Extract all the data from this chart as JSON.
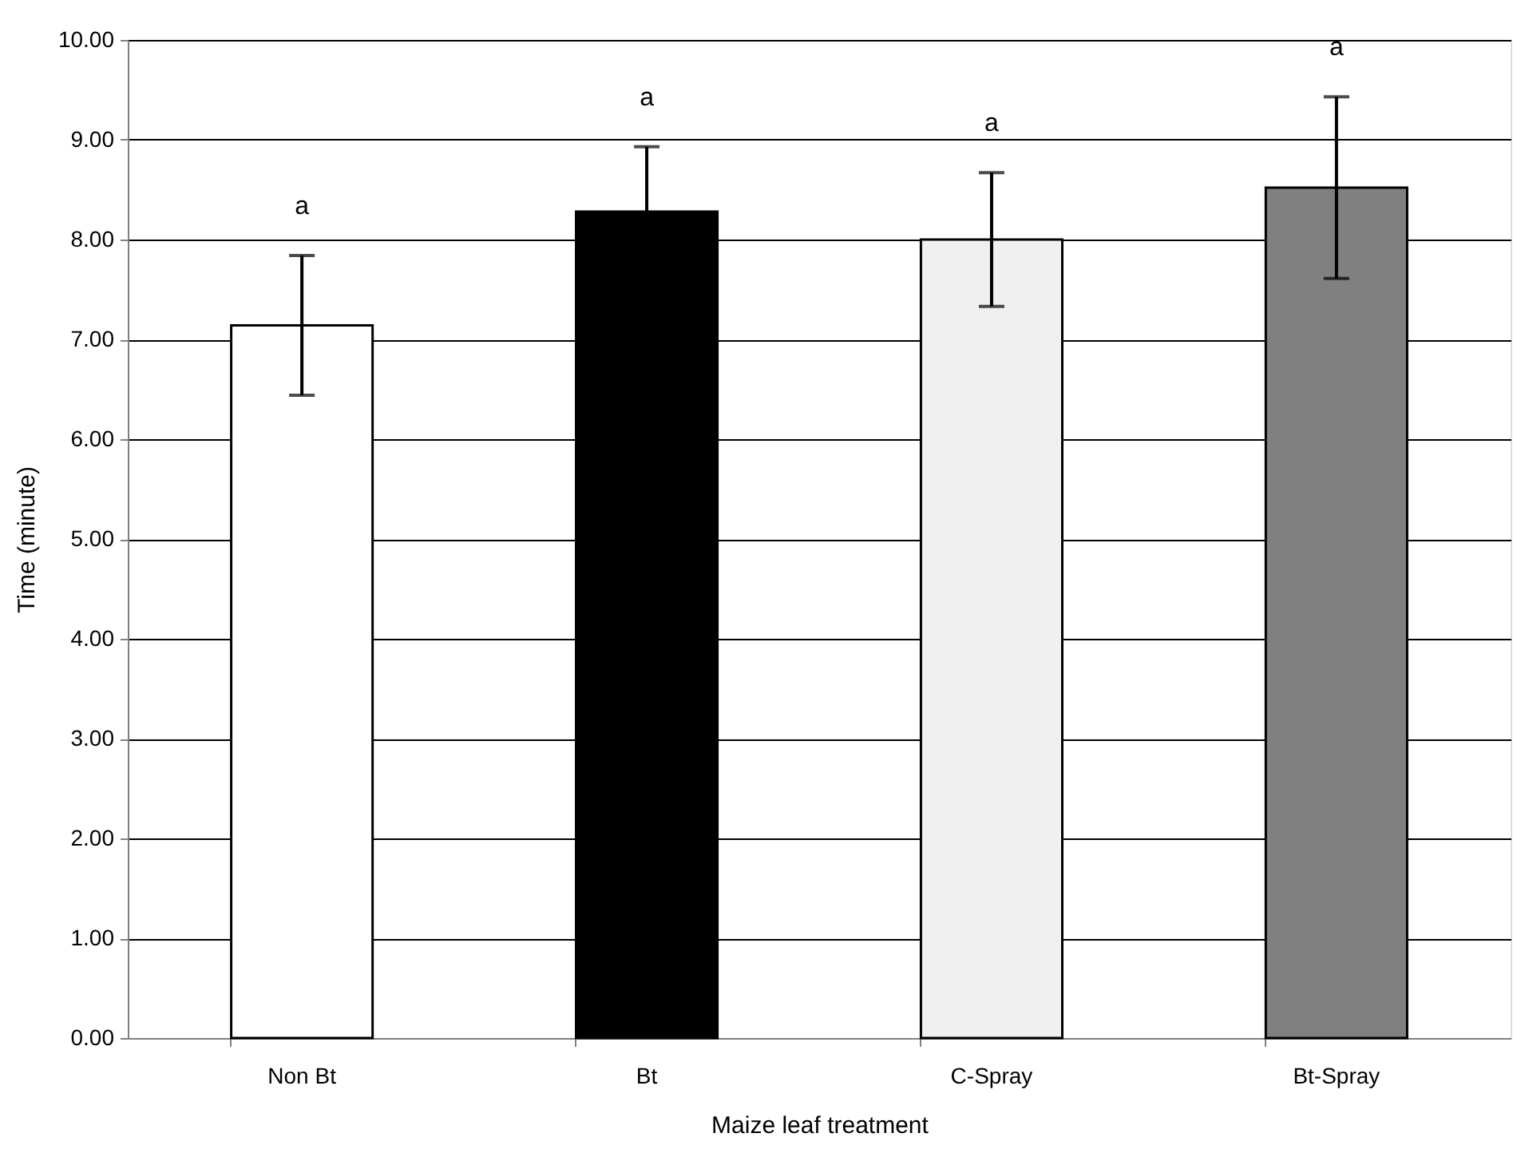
{
  "chart_data": {
    "type": "bar",
    "xlabel": "Maize leaf treatment",
    "ylabel": "Time (minute)",
    "categories": [
      "Non Bt",
      "Bt",
      "C-Spray",
      "Bt-Spray"
    ],
    "values": [
      7.14,
      8.28,
      8.0,
      8.52
    ],
    "colors": [
      "#ffffff",
      "#000000",
      "#f0f0f0",
      "#808080"
    ],
    "errors": [
      0.7,
      0.65,
      0.67,
      0.91
    ],
    "ylim": [
      0,
      10
    ],
    "yticks": [
      {
        "value": 0,
        "label": "0.00"
      },
      {
        "value": 1,
        "label": "1.00"
      },
      {
        "value": 2,
        "label": "2.00"
      },
      {
        "value": 3,
        "label": "3.00"
      },
      {
        "value": 4,
        "label": "4.00"
      },
      {
        "value": 5,
        "label": "5.00"
      },
      {
        "value": 6,
        "label": "6.00"
      },
      {
        "value": 7,
        "label": "7.00"
      },
      {
        "value": 8,
        "label": "8.00"
      },
      {
        "value": 9,
        "label": "9.00"
      },
      {
        "value": 10,
        "label": "10.00"
      }
    ],
    "grid": "y",
    "annotations": [
      "a",
      "a",
      "a",
      "a"
    ]
  }
}
